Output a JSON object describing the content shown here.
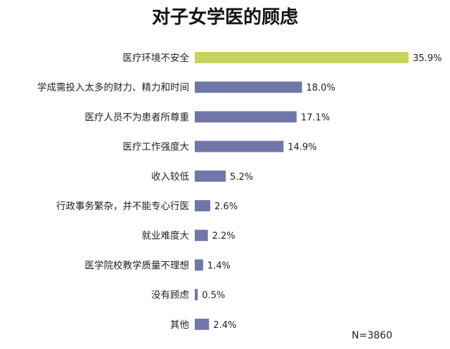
{
  "chart_data": {
    "type": "bar",
    "orientation": "horizontal",
    "title": "对子女学医的顾虑",
    "categories": [
      "医疗环境不安全",
      "学成需投入太多的财力、精力和时间",
      "医疗人员不为患者所尊重",
      "医疗工作强度大",
      "收入较低",
      "行政事务繁杂，并不能专心行医",
      "就业难度大",
      "医学院校教学质量不理想",
      "没有顾虑",
      "其他"
    ],
    "values": [
      35.9,
      18.0,
      17.1,
      14.9,
      5.2,
      2.6,
      2.2,
      1.4,
      0.5,
      2.4
    ],
    "value_labels": [
      "35.9%",
      "18.0%",
      "17.1%",
      "14.9%",
      "5.2%",
      "2.6%",
      "2.2%",
      "1.4%",
      "0.5%",
      "2.4%"
    ],
    "highlight_index": 0,
    "colors": {
      "highlight": "#c6d35c",
      "bar": "#7077a8"
    },
    "xlim": [
      0,
      36
    ],
    "grid": false,
    "legend": "none",
    "note": "N=3860"
  }
}
